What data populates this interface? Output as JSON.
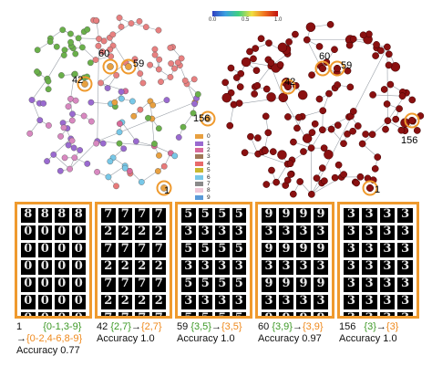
{
  "colorbar": {
    "ticks": [
      "0.0",
      "0.5",
      "1.0"
    ],
    "stops": [
      "#3040c0",
      "#3aa0e0",
      "#40d080",
      "#f0e040",
      "#f07020",
      "#c01010"
    ]
  },
  "legend": {
    "labels": [
      "0",
      "1",
      "2",
      "3",
      "4",
      "5",
      "6",
      "7",
      "8",
      "9"
    ],
    "colors": [
      "#e8a040",
      "#9a6ad0",
      "#d86a9a",
      "#a07858",
      "#e86a6a",
      "#c8b830",
      "#78c8e8",
      "#8a8a8a",
      "#f0c8d8",
      "#5a9ad8"
    ]
  },
  "node_labels": {
    "left": [
      "60",
      "59",
      "42",
      "156",
      "1"
    ],
    "right": [
      "60",
      "59",
      "42",
      "156",
      "1"
    ]
  },
  "accent": "#ef9a2e",
  "panels": [
    {
      "digits": [
        "8",
        "8",
        "8",
        "8",
        "0",
        "0",
        "0",
        "0",
        "0",
        "0",
        "0",
        "0",
        "0",
        "0",
        "0",
        "0",
        "0",
        "0",
        "0",
        "0",
        "0",
        "0",
        "0",
        "0",
        "0",
        "0",
        "0",
        "0"
      ],
      "id": "1",
      "from": "{0-1,3-9}",
      "arrow": "→",
      "to": "{0-2,4-6,8-9}",
      "accuracy": "Accuracy 0.77"
    },
    {
      "digits": [
        "7",
        "7",
        "7",
        "7",
        "2",
        "2",
        "2",
        "2",
        "7",
        "7",
        "7",
        "7",
        "2",
        "2",
        "2",
        "2",
        "7",
        "7",
        "7",
        "7",
        "2",
        "2",
        "2",
        "2",
        "7",
        "7",
        "7",
        "7"
      ],
      "id": "42",
      "from": "{2,7}",
      "arrow": "→",
      "to": "{2,7}",
      "accuracy": "Accuracy 1.0"
    },
    {
      "digits": [
        "5",
        "5",
        "5",
        "5",
        "3",
        "3",
        "3",
        "3",
        "5",
        "5",
        "5",
        "5",
        "3",
        "3",
        "3",
        "3",
        "5",
        "5",
        "5",
        "5",
        "3",
        "3",
        "3",
        "3",
        "5",
        "5",
        "5",
        "5"
      ],
      "id": "59",
      "from": "{3,5}",
      "arrow": "→",
      "to": "{3,5}",
      "accuracy": "Accuracy 1.0"
    },
    {
      "digits": [
        "9",
        "9",
        "9",
        "9",
        "3",
        "3",
        "3",
        "3",
        "9",
        "9",
        "9",
        "9",
        "3",
        "3",
        "3",
        "3",
        "9",
        "9",
        "9",
        "9",
        "3",
        "3",
        "3",
        "3",
        "9",
        "9",
        "9",
        "9"
      ],
      "id": "60",
      "from": "{3,9}",
      "arrow": "→",
      "to": "{3,9}",
      "accuracy": "Accuracy 0.97"
    },
    {
      "digits": [
        "3",
        "3",
        "3",
        "3",
        "3",
        "3",
        "3",
        "3",
        "3",
        "3",
        "3",
        "3",
        "3",
        "3",
        "3",
        "3",
        "3",
        "3",
        "3",
        "3",
        "3",
        "3",
        "3",
        "3",
        "3",
        "3",
        "3",
        "3"
      ],
      "id": "156",
      "from": "{3}",
      "arrow": "→",
      "to": "{3}",
      "accuracy": "Accuracy 1.0"
    }
  ]
}
